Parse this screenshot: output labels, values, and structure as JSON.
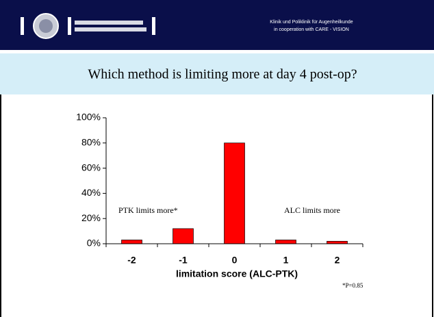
{
  "header": {
    "line1": "Klinik und Poliklinik für Augenheilkunde",
    "line2": "in cooperation with CARE - VISION"
  },
  "chart_data": {
    "type": "bar",
    "title": "Which method  is limiting more at day 4 post-op?",
    "x_label": "limitation score (ALC-PTK)",
    "annotations": [
      "PTK limits more*",
      "ALC limits more",
      "*P=0.85"
    ],
    "categories": [
      "-2",
      "-1",
      "0",
      "1",
      "2"
    ],
    "values": [
      3,
      12,
      80,
      3,
      2
    ],
    "color": "#ff0000",
    "ylim": [
      0,
      100
    ],
    "yticks": [
      {
        "value": 0,
        "label": "0%"
      },
      {
        "value": 20,
        "label": "20%"
      },
      {
        "value": 40,
        "label": "40%"
      },
      {
        "value": 60,
        "label": "60%"
      },
      {
        "value": 80,
        "label": "80%"
      },
      {
        "value": 100,
        "label": "100%"
      }
    ]
  }
}
